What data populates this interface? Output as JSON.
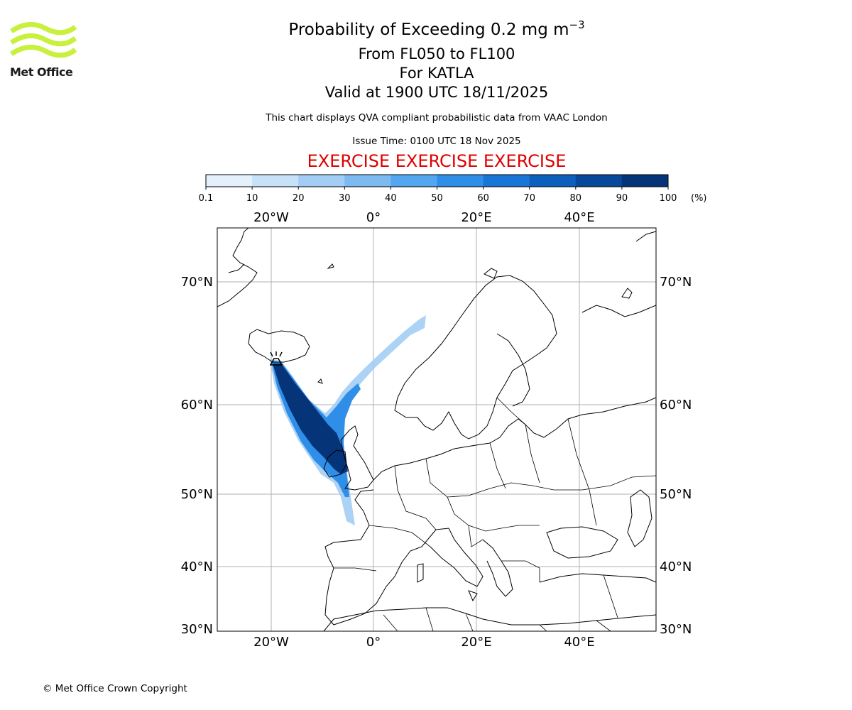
{
  "header": {
    "title_prefix": "Probability of Exceeding 0.2 mg m",
    "title_exponent": "−3",
    "levels": "From FL050 to FL100",
    "volcano": "For KATLA",
    "valid": "Valid at 1900 UTC 18/11/2025",
    "disclaimer": "This chart displays QVA compliant probabilistic data from VAAC London",
    "issue_time": "Issue Time: 0100 UTC 18 Nov 2025",
    "exercise": "EXERCISE EXERCISE EXERCISE"
  },
  "logo": {
    "text": "Met Office",
    "color": "#c8f03c"
  },
  "footer": {
    "copyright": "© Met Office Crown Copyright"
  },
  "colorbar": {
    "ticks": [
      "0.1",
      "10",
      "20",
      "30",
      "40",
      "50",
      "60",
      "70",
      "80",
      "90",
      "100"
    ],
    "unit": "(%)",
    "colors": [
      "#e4f1fd",
      "#c6e1f8",
      "#a3cdf5",
      "#7dbaf2",
      "#54a6f0",
      "#2f8ee8",
      "#1a76d6",
      "#0c5fbd",
      "#07489a",
      "#063478"
    ]
  },
  "map": {
    "lon_labels": [
      "20°W",
      "0°",
      "20°E",
      "40°E"
    ],
    "lat_labels": [
      "70°N",
      "60°N",
      "50°N",
      "40°N",
      "30°N"
    ],
    "extent": {
      "lon": [
        -30,
        55
      ],
      "lat": [
        30,
        75
      ]
    },
    "volcano_marker": {
      "name": "KATLA",
      "lon": -19.1,
      "lat": 63.6
    }
  }
}
